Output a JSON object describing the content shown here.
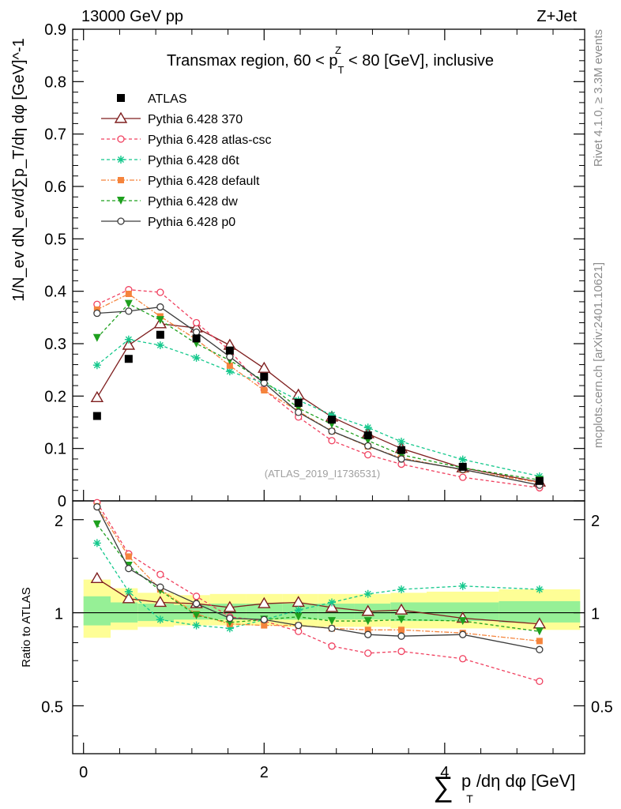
{
  "chart_data": {
    "type": "line",
    "header": {
      "energy_label": "13000 GeV pp",
      "process_label": "Z+Jet",
      "title": "Transmax region, 60 < p_T^Z < 80 [GeV], inclusive",
      "title_pre": "Transmax region, 60 < p",
      "title_sub": "T",
      "title_sup": "Z",
      "title_post": " < 80 [GeV], inclusive",
      "watermark": "(ATLAS_2019_I1736531)",
      "side_rivet": "Rivet 4.1.0, ≥ 3.3M events",
      "side_mcplots": "mcplots.cern.ch [arXiv:2401.10621]"
    },
    "main_plot": {
      "ylabel": "1/N_ev dN_ev/d∑p_T/dη dφ [GeV]^-1",
      "ylim": [
        0,
        0.9
      ],
      "yticks": [
        "0",
        "0.1",
        "0.2",
        "0.3",
        "0.4",
        "0.5",
        "0.6",
        "0.7",
        "0.8",
        "0.9"
      ],
      "yticks_values": [
        0,
        0.1,
        0.2,
        0.3,
        0.4,
        0.5,
        0.6,
        0.7,
        0.8,
        0.9
      ]
    },
    "ratio_plot": {
      "ylabel": "Ratio to ATLAS",
      "ylim": [
        0.35,
        2.3
      ],
      "yticks": [
        "0.5",
        "1",
        "2"
      ],
      "yticks_values": [
        0.5,
        1,
        2
      ],
      "band_edges": [
        0,
        0.3,
        0.6,
        1.0,
        1.4,
        1.8,
        2.2,
        2.6,
        3.0,
        3.4,
        3.8,
        4.6,
        5.5
      ],
      "band_yellow": [
        [
          0.83,
          1.28
        ],
        [
          0.88,
          1.2
        ],
        [
          0.9,
          1.16
        ],
        [
          0.91,
          1.14
        ],
        [
          0.91,
          1.15
        ],
        [
          0.91,
          1.15
        ],
        [
          0.9,
          1.15
        ],
        [
          0.9,
          1.15
        ],
        [
          0.9,
          1.15
        ],
        [
          0.89,
          1.16
        ],
        [
          0.89,
          1.17
        ],
        [
          0.88,
          1.19
        ]
      ],
      "band_green": [
        [
          0.91,
          1.13
        ],
        [
          0.93,
          1.08
        ],
        [
          0.94,
          1.07
        ],
        [
          0.95,
          1.06
        ],
        [
          0.95,
          1.07
        ],
        [
          0.95,
          1.07
        ],
        [
          0.95,
          1.07
        ],
        [
          0.95,
          1.07
        ],
        [
          0.95,
          1.07
        ],
        [
          0.94,
          1.08
        ],
        [
          0.94,
          1.08
        ],
        [
          0.93,
          1.09
        ]
      ]
    },
    "x_axis": {
      "xlabel": "∑p_T/dη dφ [GeV]",
      "xlabel_sum": "∑",
      "xlabel_p": "p",
      "xlabel_sub": "T",
      "xlabel_rest": "/dη dφ [GeV]",
      "xlim": [
        -0.12,
        5.55
      ],
      "xticks": [
        "0",
        "2",
        "4"
      ],
      "xticks_values": [
        0,
        2,
        4
      ]
    },
    "x": [
      0.15,
      0.5,
      0.85,
      1.25,
      1.62,
      2.0,
      2.38,
      2.75,
      3.15,
      3.52,
      4.2,
      5.05
    ],
    "series": [
      {
        "name": "ATLAS",
        "color": "#000000",
        "marker": "square",
        "dash": "",
        "main": [
          0.162,
          0.271,
          0.317,
          0.31,
          0.287,
          0.237,
          0.187,
          0.155,
          0.125,
          0.097,
          0.065,
          0.038
        ]
      },
      {
        "name": "Pythia 6.428 370",
        "color": "#7f1f1f",
        "marker": "triangle-open",
        "dash": "",
        "main": [
          0.197,
          0.297,
          0.338,
          0.33,
          0.297,
          0.253,
          0.202,
          0.16,
          0.128,
          0.1,
          0.063,
          0.036
        ],
        "ratio": [
          1.29,
          1.11,
          1.08,
          1.07,
          1.04,
          1.07,
          1.08,
          1.04,
          1.01,
          1.02,
          0.96,
          0.92
        ]
      },
      {
        "name": "Pythia 6.428 atlas-csc",
        "color": "#f0405f",
        "marker": "circle-open",
        "dash": "4,3",
        "main": [
          0.375,
          0.403,
          0.398,
          0.34,
          0.287,
          0.212,
          0.16,
          0.115,
          0.088,
          0.07,
          0.045,
          0.025
        ],
        "ratio": [
          2.27,
          1.55,
          1.33,
          1.13,
          0.97,
          0.94,
          0.87,
          0.78,
          0.74,
          0.75,
          0.71,
          0.6
        ]
      },
      {
        "name": "Pythia 6.428 d6t",
        "color": "#14c88c",
        "marker": "star",
        "dash": "4,3",
        "main": [
          0.259,
          0.308,
          0.297,
          0.273,
          0.247,
          0.225,
          0.192,
          0.164,
          0.14,
          0.113,
          0.079,
          0.047
        ],
        "ratio": [
          1.68,
          1.17,
          0.95,
          0.91,
          0.89,
          0.95,
          1.02,
          1.08,
          1.15,
          1.19,
          1.22,
          1.19
        ]
      },
      {
        "name": "Pythia 6.428 default",
        "color": "#f5843c",
        "marker": "square-filled",
        "dash": "6,2,2,2",
        "main": [
          0.365,
          0.395,
          0.352,
          0.308,
          0.258,
          0.211,
          0.171,
          0.133,
          0.104,
          0.082,
          0.059,
          0.035
        ],
        "ratio": [
          2.21,
          1.52,
          1.19,
          0.99,
          0.92,
          0.91,
          0.91,
          0.89,
          0.88,
          0.88,
          0.86,
          0.81
        ]
      },
      {
        "name": "Pythia 6.428 dw",
        "color": "#1ea01e",
        "marker": "triangle-down",
        "dash": "4,3",
        "main": [
          0.311,
          0.376,
          0.345,
          0.3,
          0.268,
          0.229,
          0.177,
          0.146,
          0.115,
          0.088,
          0.063,
          0.04
        ],
        "ratio": [
          1.93,
          1.42,
          1.18,
          0.98,
          0.93,
          0.95,
          0.97,
          0.94,
          0.94,
          0.95,
          0.94,
          0.87
        ]
      },
      {
        "name": "Pythia 6.428 p0",
        "color": "#3c3c3c",
        "marker": "circle-open",
        "dash": "",
        "main": [
          0.358,
          0.362,
          0.37,
          0.322,
          0.275,
          0.225,
          0.169,
          0.133,
          0.105,
          0.08,
          0.06,
          0.03
        ],
        "ratio": [
          2.2,
          1.39,
          1.21,
          1.07,
          0.96,
          0.95,
          0.91,
          0.89,
          0.85,
          0.84,
          0.85,
          0.76
        ]
      }
    ]
  }
}
